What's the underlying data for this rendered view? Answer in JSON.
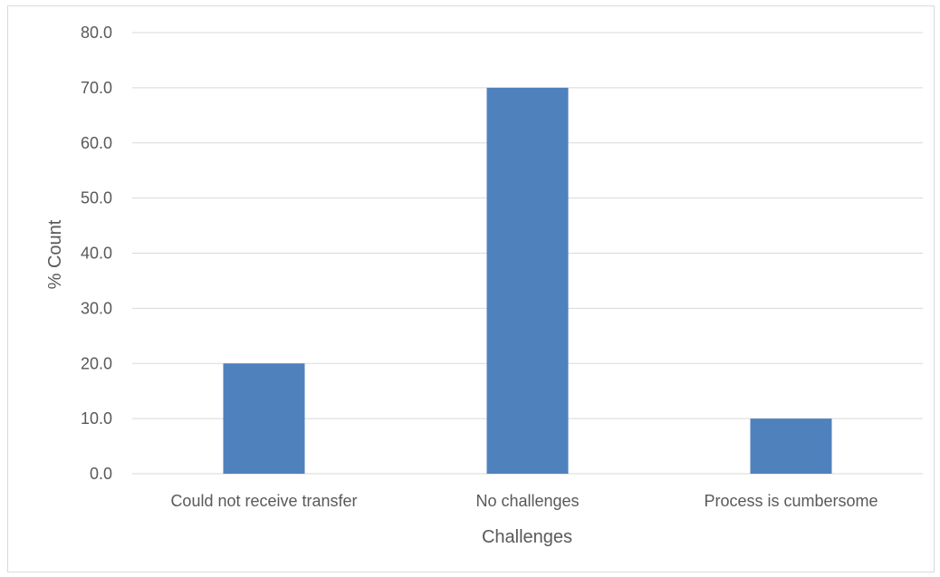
{
  "chart_data": {
    "type": "bar",
    "title": "",
    "xlabel": "Challenges",
    "ylabel": "% Count",
    "categories": [
      "Could not receive transfer",
      "No challenges",
      "Process is cumbersome"
    ],
    "values": [
      20.0,
      70.0,
      10.0
    ],
    "ylim": [
      0,
      80
    ],
    "yticks": [
      "0.0",
      "10.0",
      "20.0",
      "30.0",
      "40.0",
      "50.0",
      "60.0",
      "70.0",
      "80.0"
    ],
    "grid": true,
    "legend": "none",
    "bar_color": "#4f81bd",
    "gridline_color": "#d9d9d9",
    "text_color": "#595959"
  }
}
